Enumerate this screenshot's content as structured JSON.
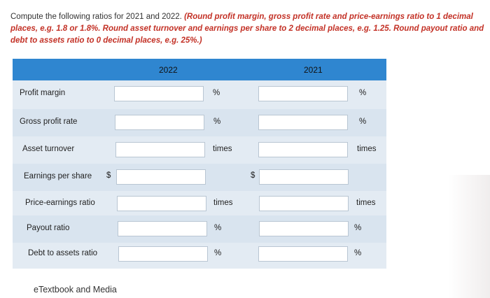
{
  "instructions": {
    "prefix": "Compute the following ratios for 2021 and 2022. ",
    "red_text": "(Round profit margin, gross profit rate and price-earnings ratio to 1 decimal places, e.g. 1.8 or 1.8%. Round asset turnover and earnings per share to 2 decimal places, e.g. 1.25. Round payout ratio and debt to assets ratio to 0 decimal places, e.g. 25%.)"
  },
  "table": {
    "columns": [
      "2022",
      "2021"
    ],
    "rows": [
      {
        "label": "Profit margin",
        "currency": "",
        "unit": "%",
        "value_2022": "",
        "value_2021": ""
      },
      {
        "label": "Gross profit rate",
        "currency": "",
        "unit": "%",
        "value_2022": "",
        "value_2021": ""
      },
      {
        "label": "Asset turnover",
        "currency": "",
        "unit": "times",
        "value_2022": "",
        "value_2021": ""
      },
      {
        "label": "Earnings per share",
        "currency": "$",
        "unit": "",
        "value_2022": "",
        "value_2021": ""
      },
      {
        "label": "Price-earnings ratio",
        "currency": "",
        "unit": "times",
        "value_2022": "",
        "value_2021": ""
      },
      {
        "label": "Payout ratio",
        "currency": "",
        "unit": "%",
        "value_2022": "",
        "value_2021": ""
      },
      {
        "label": "Debt to assets ratio",
        "currency": "",
        "unit": "%",
        "value_2022": "",
        "value_2021": ""
      }
    ]
  },
  "footer": {
    "link": "eTextbook and Media"
  },
  "colors": {
    "header_bg": "#2f86d0",
    "instruction_red": "#c33126",
    "row_bg": "#e3ebf3"
  }
}
